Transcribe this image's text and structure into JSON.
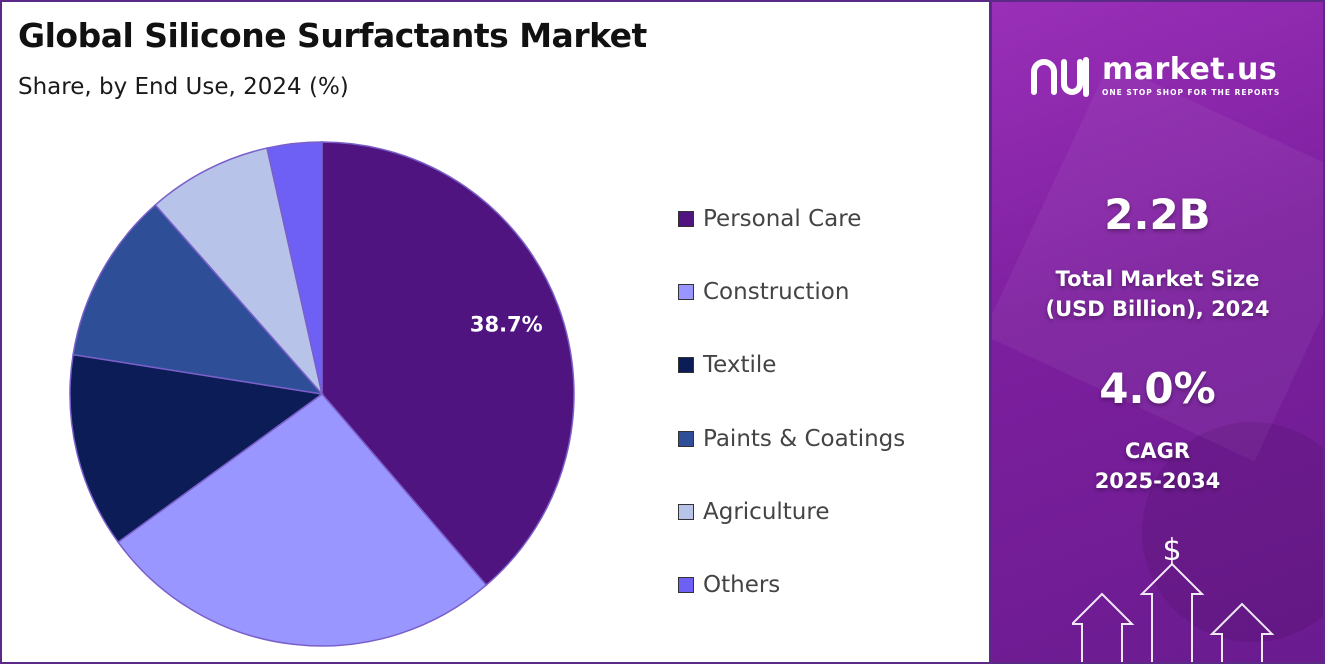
{
  "title": "Global Silicone Surfactants Market",
  "subtitle": "Share, by End Use, 2024 (%)",
  "chart_data": {
    "type": "pie",
    "title": "Global Silicone Surfactants Market",
    "subtitle": "Share, by End Use, 2024 (%)",
    "categories": [
      "Personal Care",
      "Construction",
      "Textile",
      "Paints & Coatings",
      "Agriculture",
      "Others"
    ],
    "values": [
      38.7,
      26.3,
      12.5,
      11.0,
      8.0,
      3.5
    ],
    "colors": [
      "#4f1480",
      "#9a96ff",
      "#0b1c56",
      "#2e4f98",
      "#b7c3e9",
      "#6e60f5"
    ],
    "data_labels": [
      "38.7%",
      "",
      "",
      "",
      "",
      ""
    ],
    "legend_position": "right",
    "start_angle": "top",
    "direction": "clockwise"
  },
  "sidebar": {
    "brand_name": "market.us",
    "brand_tagline": "ONE STOP SHOP FOR THE REPORTS",
    "market_size_value": "2.2B",
    "market_size_label_line1": "Total Market Size",
    "market_size_label_line2": "(USD Billion), 2024",
    "cagr_value": "4.0%",
    "cagr_label_line1": "CAGR",
    "cagr_label_line2": "2025-2034",
    "currency_symbol": "$",
    "icons": [
      "market-us-logo-icon",
      "growth-arrows-icon",
      "dollar-icon"
    ]
  }
}
